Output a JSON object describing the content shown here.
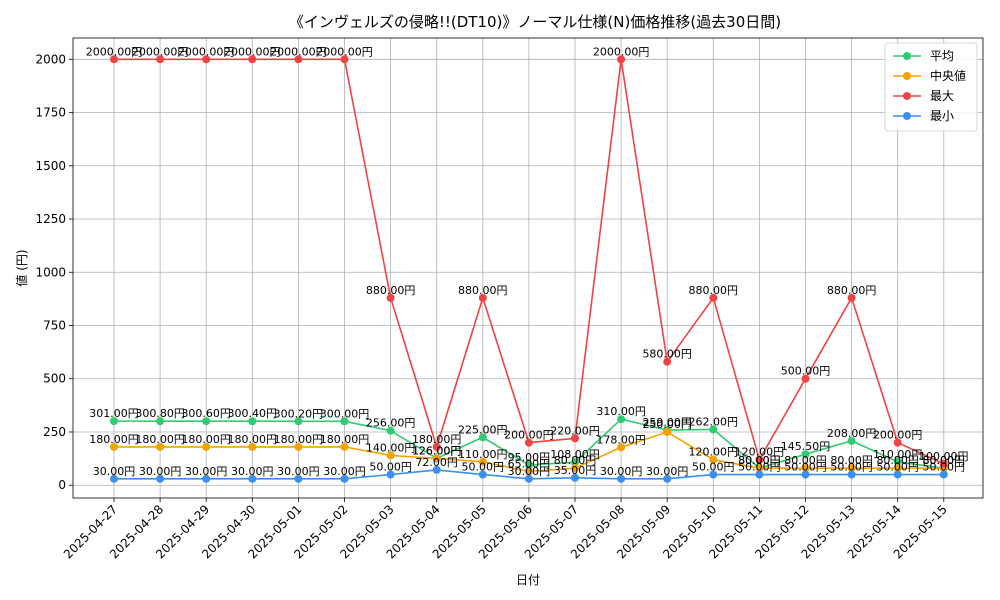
{
  "chart_data": {
    "type": "line",
    "title": "《インヴェルズの侵略!!(DT10)》ノーマル仕様(N)価格推移(過去30日間)",
    "xlabel": "日付",
    "ylabel": "値 (円)",
    "ylim": [
      -60,
      2100
    ],
    "yticks": [
      0,
      250,
      500,
      750,
      1000,
      1250,
      1500,
      1750,
      2000
    ],
    "grid": true,
    "legend_position": "top-right",
    "label_suffix": "円",
    "categories": [
      "2025-04-27",
      "2025-04-28",
      "2025-04-29",
      "2025-04-30",
      "2025-05-01",
      "2025-05-02",
      "2025-05-03",
      "2025-05-04",
      "2025-05-05",
      "2025-05-06",
      "2025-05-07",
      "2025-05-08",
      "2025-05-09",
      "2025-05-10",
      "2025-05-11",
      "2025-05-12",
      "2025-05-13",
      "2025-05-14",
      "2025-05-15"
    ],
    "series": [
      {
        "name": "平均",
        "color": "#2ecc71",
        "values": [
          301.0,
          300.8,
          300.6,
          300.4,
          300.2,
          300.0,
          256.0,
          126.0,
          225.0,
          95.0,
          108.0,
          310.0,
          259.0,
          262.0,
          80.0,
          145.5,
          208.0,
          110.0,
          80.0
        ]
      },
      {
        "name": "中央値",
        "color": "#f5a200",
        "values": [
          180.0,
          180.0,
          180.0,
          180.0,
          180.0,
          180.0,
          140.0,
          126.0,
          110.0,
          65.0,
          80.0,
          178.0,
          250.0,
          120.0,
          80.0,
          80.0,
          80.0,
          80.0,
          80.0
        ]
      },
      {
        "name": "最大",
        "color": "#ef4444",
        "values": [
          2000.0,
          2000.0,
          2000.0,
          2000.0,
          2000.0,
          2000.0,
          880.0,
          180.0,
          880.0,
          200.0,
          220.0,
          2000.0,
          580.0,
          880.0,
          120.0,
          500.0,
          880.0,
          200.0,
          100.0
        ]
      },
      {
        "name": "最小",
        "color": "#3b8ff0",
        "values": [
          30.0,
          30.0,
          30.0,
          30.0,
          30.0,
          30.0,
          50.0,
          72.0,
          50.0,
          30.0,
          35.0,
          30.0,
          30.0,
          50.0,
          50.0,
          50.0,
          50.0,
          50.0,
          50.0
        ]
      }
    ]
  }
}
